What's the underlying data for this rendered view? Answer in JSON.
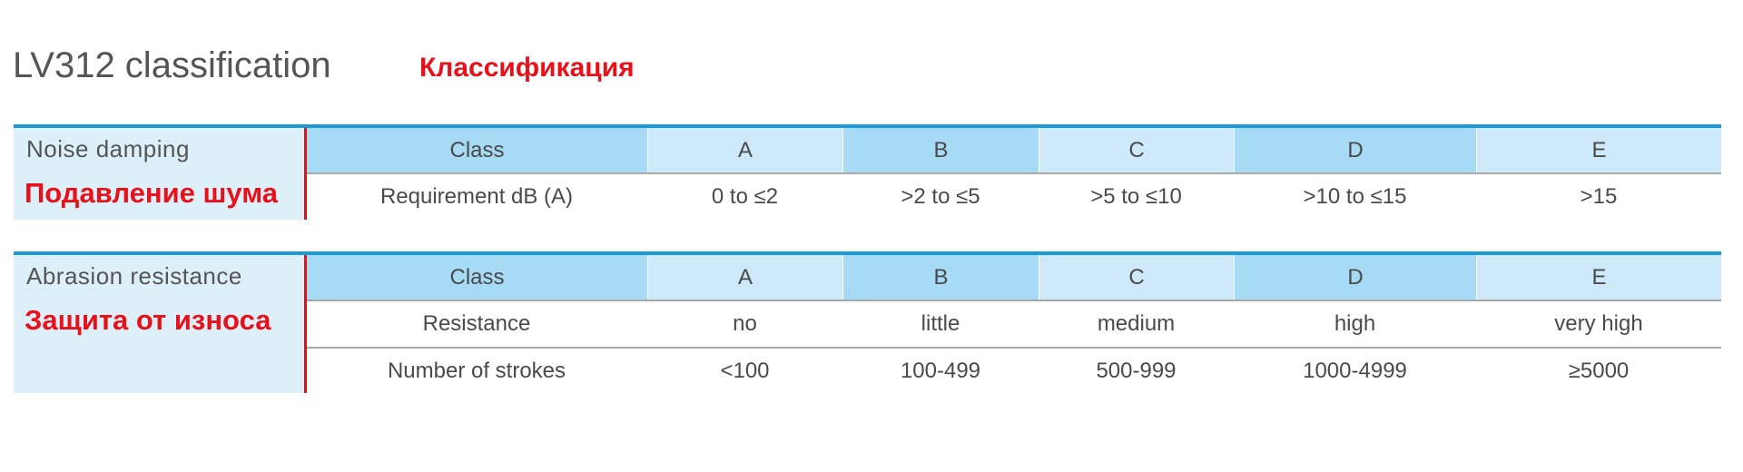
{
  "header": {
    "title": "LV312 classification",
    "title_ru": "Классификация"
  },
  "tables": [
    {
      "label": "Noise damping",
      "label_ru": "Подавление шума",
      "header": [
        "Class",
        "A",
        "B",
        "C",
        "D",
        "E"
      ],
      "rows": [
        [
          "Requirement dB (A)",
          "0 to ≤2",
          ">2 to ≤5",
          ">5 to ≤10",
          ">10 to ≤15",
          ">15"
        ]
      ]
    },
    {
      "label": "Abrasion resistance",
      "label_ru": "Защита от износа",
      "header": [
        "Class",
        "A",
        "B",
        "C",
        "D",
        "E"
      ],
      "rows": [
        [
          "Resistance",
          "no",
          "little",
          "medium",
          "high",
          "very high"
        ],
        [
          "Number of strokes",
          "<100",
          "100-499",
          "500-999",
          "1000-4999",
          "≥5000"
        ]
      ]
    }
  ]
}
